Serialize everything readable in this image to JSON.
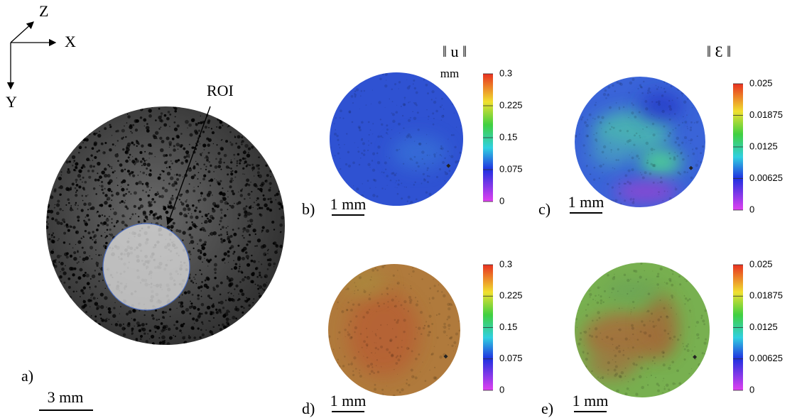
{
  "axes": {
    "z": "Z",
    "x": "X",
    "y": "Y"
  },
  "panel_a": {
    "label": "a)",
    "roi": "ROI",
    "scale_bar": "3 mm"
  },
  "columns": {
    "displacement": "‖ u ‖",
    "strain": "‖ Ɛ ‖",
    "unit": "mm"
  },
  "panels": [
    {
      "label": "b)",
      "scale_bar": "1 mm"
    },
    {
      "label": "c)",
      "scale_bar": "1 mm"
    },
    {
      "label": "d)",
      "scale_bar": "1 mm"
    },
    {
      "label": "e)",
      "scale_bar": "1 mm"
    }
  ],
  "colorbars": [
    {
      "lim": [
        0,
        0.3
      ],
      "ticks": [
        0.3,
        0.225,
        0.15,
        0.075,
        0
      ]
    },
    {
      "lim": [
        0,
        0.025
      ],
      "ticks": [
        0.025,
        0.01875,
        0.0125,
        0.00625,
        0
      ]
    },
    {
      "lim": [
        0,
        0.3
      ],
      "ticks": [
        0.3,
        0.225,
        0.15,
        0.075,
        0
      ]
    },
    {
      "lim": [
        0,
        0.025
      ],
      "ticks": [
        0.025,
        0.01875,
        0.0125,
        0.00625,
        0
      ]
    }
  ]
}
